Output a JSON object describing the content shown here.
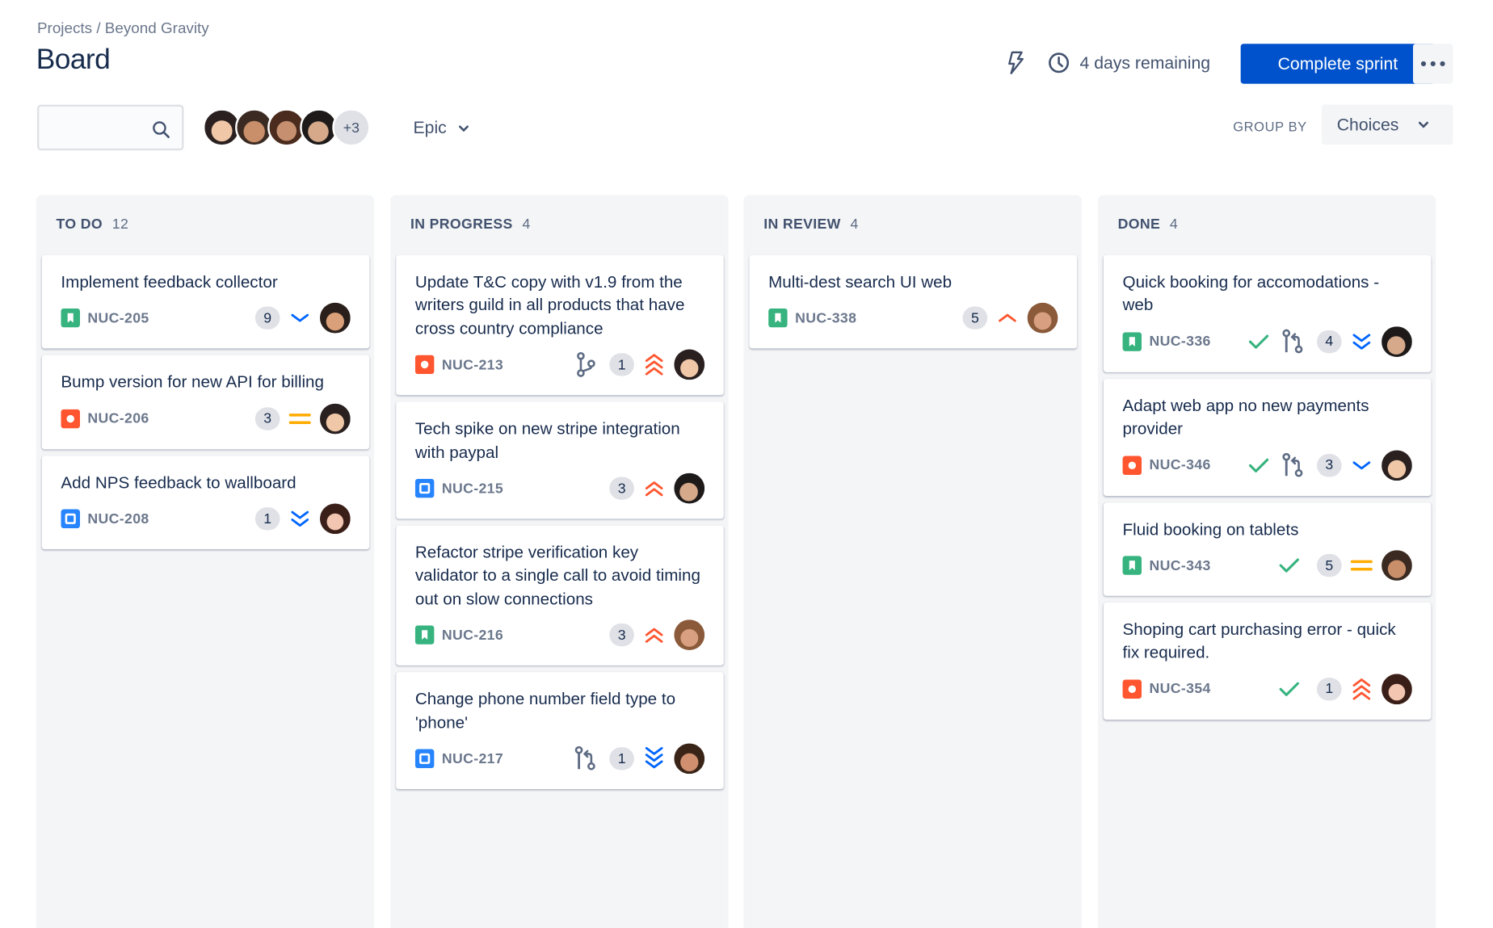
{
  "breadcrumb": "Projects / Beyond Gravity",
  "page_title": "Board",
  "search": {
    "placeholder": "",
    "value": ""
  },
  "avatars": {
    "overflow_label": "+3"
  },
  "epic_filter": "Epic",
  "sprint": {
    "remaining": "4 days remaining",
    "complete_label": "Complete sprint"
  },
  "group_by": {
    "label": "GROUP BY",
    "value": "Choices"
  },
  "colors": {
    "primary": "#0052cc",
    "story": "#36b37e",
    "bug": "#ff5630",
    "task": "#2684ff",
    "prio_up": "#ff5630",
    "prio_down": "#0065ff",
    "prio_medium": "#ffab00",
    "done_check": "#36b37e"
  },
  "columns": [
    {
      "name": "TO DO",
      "count": "12",
      "cards": [
        {
          "title": "Implement feedback collector",
          "key": "NUC-205",
          "type": "story",
          "points": "9",
          "priority": "chevron-down",
          "avatar": "a3"
        },
        {
          "title": "Bump version for new API for billing",
          "key": "NUC-206",
          "type": "bug",
          "points": "3",
          "priority": "equals",
          "avatar": "a1"
        },
        {
          "title": "Add NPS feedback to wallboard",
          "key": "NUC-208",
          "type": "task",
          "points": "1",
          "priority": "chevrons-down-2",
          "avatar": "a5"
        }
      ]
    },
    {
      "name": "IN PROGRESS",
      "count": "4",
      "cards": [
        {
          "title": "Update T&C copy with v1.9 from the writers guild in all products that have cross country compliance",
          "key": "NUC-213",
          "type": "bug",
          "branch": "branch",
          "points": "1",
          "priority": "chevrons-up-3",
          "avatar": "a1"
        },
        {
          "title": "Tech spike on new stripe integration with paypal",
          "key": "NUC-215",
          "type": "task",
          "points": "3",
          "priority": "chevrons-up-2",
          "avatar": "a4"
        },
        {
          "title": "Refactor stripe verification key validator to a single call to avoid timing out on slow connections",
          "key": "NUC-216",
          "type": "story",
          "points": "3",
          "priority": "chevrons-up-2",
          "avatar": "a6"
        },
        {
          "title": "Change phone number field type to 'phone'",
          "key": "NUC-217",
          "type": "task",
          "branch": "pull-request",
          "points": "1",
          "priority": "chevrons-down-3",
          "avatar": "a7"
        }
      ]
    },
    {
      "name": "IN REVIEW",
      "count": "4",
      "cards": [
        {
          "title": "Multi-dest search UI web",
          "key": "NUC-338",
          "type": "story",
          "points": "5",
          "priority": "chevron-up",
          "avatar": "a6"
        }
      ]
    },
    {
      "name": "DONE",
      "count": "4",
      "cards": [
        {
          "title": "Quick booking for accomodations - web",
          "key": "NUC-336",
          "type": "story",
          "done": true,
          "branch": "pull-request",
          "points": "4",
          "priority": "chevrons-down-2",
          "avatar": "a4"
        },
        {
          "title": "Adapt web app no new payments provider",
          "key": "NUC-346",
          "type": "bug",
          "done": true,
          "branch": "pull-request",
          "points": "3",
          "priority": "chevron-down",
          "avatar": "a1"
        },
        {
          "title": "Fluid booking on tablets",
          "key": "NUC-343",
          "type": "story",
          "done": true,
          "points": "5",
          "priority": "equals",
          "avatar": "a2"
        },
        {
          "title": "Shoping cart purchasing error - quick fix required.",
          "key": "NUC-354",
          "type": "bug",
          "done": true,
          "points": "1",
          "priority": "chevrons-up-3",
          "avatar": "a5"
        }
      ]
    }
  ]
}
